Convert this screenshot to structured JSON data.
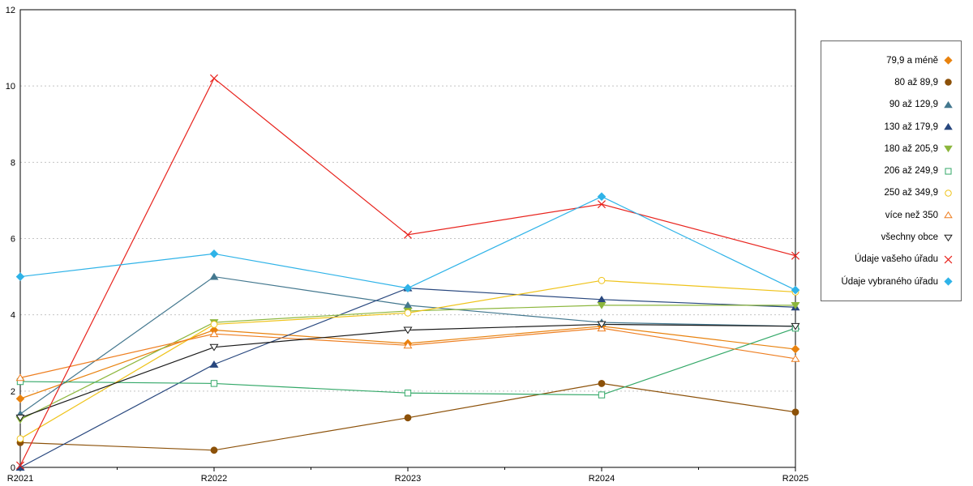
{
  "chart_data": {
    "type": "line",
    "title": "",
    "xlabel": "",
    "ylabel": "",
    "x": [
      "R2021",
      "R2022",
      "R2023",
      "R2024",
      "R2025"
    ],
    "ylim": [
      0,
      12
    ],
    "yticks": [
      0,
      2,
      4,
      6,
      8,
      10,
      12
    ],
    "grid": true,
    "grid_style": "dotted",
    "legend_position": "right",
    "frame_color": "#000000",
    "grid_color": "#c4c4c4",
    "series": [
      {
        "name": "79,9 a méně",
        "marker": "diamond-filled",
        "color": "#E8820E",
        "values": [
          1.8,
          3.6,
          3.25,
          3.7,
          3.1
        ]
      },
      {
        "name": "80 až 89,9",
        "marker": "circle-filled",
        "color": "#8C5109",
        "values": [
          0.65,
          0.45,
          1.3,
          2.2,
          1.45
        ]
      },
      {
        "name": "90 až 129,9",
        "marker": "triangle-filled",
        "color": "#44788F",
        "values": [
          1.4,
          5.0,
          4.25,
          3.8,
          3.7
        ]
      },
      {
        "name": "130 až 179,9",
        "marker": "triangle-filled",
        "color": "#28477E",
        "values": [
          0.0,
          2.7,
          4.7,
          4.4,
          4.2
        ]
      },
      {
        "name": "180 až 205,9",
        "marker": "triangle-down-filled",
        "color": "#8CB63C",
        "values": [
          1.25,
          3.8,
          4.1,
          4.25,
          4.25
        ]
      },
      {
        "name": "206 až 249,9",
        "marker": "square-open",
        "color": "#33A868",
        "values": [
          2.25,
          2.2,
          1.95,
          1.9,
          3.65
        ]
      },
      {
        "name": "250 až 349,9",
        "marker": "circle-open",
        "color": "#EFC31A",
        "values": [
          0.75,
          3.75,
          4.05,
          4.9,
          4.6
        ]
      },
      {
        "name": "více než 350",
        "marker": "triangle-open",
        "color": "#EE7E20",
        "values": [
          2.35,
          3.5,
          3.2,
          3.65,
          2.85
        ]
      },
      {
        "name": "všechny obce",
        "marker": "triangle-down-open",
        "color": "#1A1A1A",
        "values": [
          1.3,
          3.15,
          3.6,
          3.75,
          3.7
        ]
      },
      {
        "name": "Údaje vašeho úřadu",
        "marker": "x",
        "color": "#E8231D",
        "values": [
          0.05,
          10.2,
          6.1,
          6.9,
          5.55
        ]
      },
      {
        "name": "Údaje vybraného úřadu",
        "marker": "diamond-filled",
        "color": "#2FB3E8",
        "values": [
          5.0,
          5.6,
          4.7,
          7.1,
          4.65
        ]
      }
    ]
  }
}
